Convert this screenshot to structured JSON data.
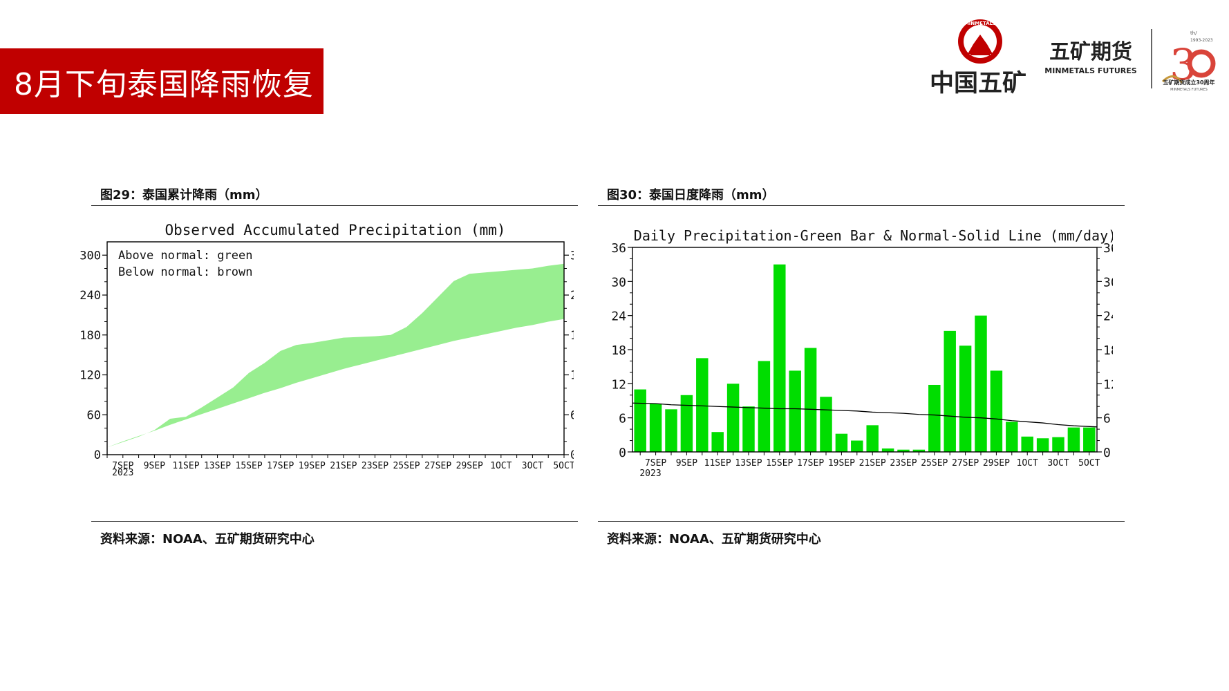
{
  "slide": {
    "title": "8月下旬泰国降雨恢复"
  },
  "logos": {
    "group_name": "中国五矿",
    "seal_text": "MINMETALS",
    "brand_cn": "五矿期货",
    "brand_en": "MINMETALS FUTURES",
    "anniv_small": "th/",
    "anniv_years": "1993-2023",
    "anniv_caption": "五矿期货成立30周年",
    "anniv_caption_en": "MINMETALS FUTURES"
  },
  "figures": [
    {
      "caption": "图29：泰国累计降雨（mm）",
      "source": "资料来源：NOAA、五矿期货研究中心"
    },
    {
      "caption": "图30：泰国日度降雨（mm）",
      "source": "资料来源：NOAA、五矿期货研究中心"
    }
  ],
  "chart_data": [
    {
      "type": "area",
      "title": "Observed Accumulated Precipitation (mm)",
      "legend": [
        "Above normal: green",
        "Below normal: brown"
      ],
      "legend_position": "top-left",
      "x_ticks": [
        "7SEP",
        "9SEP",
        "11SEP",
        "13SEP",
        "15SEP",
        "17SEP",
        "19SEP",
        "21SEP",
        "23SEP",
        "25SEP",
        "27SEP",
        "29SEP",
        "1OCT",
        "3OCT",
        "5OCT"
      ],
      "x_year": "2023",
      "y_ticks": [
        0,
        60,
        120,
        180,
        240,
        300
      ],
      "ylim": [
        0,
        320
      ],
      "fill_color": "#98ee90",
      "days": [
        "6SEP",
        "7SEP",
        "8SEP",
        "9SEP",
        "10SEP",
        "11SEP",
        "12SEP",
        "13SEP",
        "14SEP",
        "15SEP",
        "16SEP",
        "17SEP",
        "18SEP",
        "19SEP",
        "20SEP",
        "21SEP",
        "22SEP",
        "23SEP",
        "24SEP",
        "25SEP",
        "26SEP",
        "27SEP",
        "28SEP",
        "29SEP",
        "30SEP",
        "1OCT",
        "2OCT",
        "3OCT",
        "4OCT",
        "5OCT"
      ],
      "series": [
        {
          "name": "Observed",
          "values": [
            11,
            19,
            27,
            37,
            54,
            57,
            71,
            86,
            101,
            123,
            138,
            156,
            165,
            168,
            172,
            176,
            177,
            178,
            180,
            192,
            213,
            237,
            261,
            272,
            274,
            276,
            278,
            280,
            284,
            287
          ]
        },
        {
          "name": "Normal",
          "values": [
            11,
            20,
            28,
            36,
            45,
            53,
            61,
            69,
            77,
            85,
            93,
            100,
            108,
            115,
            122,
            129,
            135,
            141,
            147,
            153,
            159,
            165,
            171,
            176,
            181,
            186,
            191,
            195,
            200,
            204
          ]
        }
      ]
    },
    {
      "type": "bar",
      "title": "Daily Precipitation-Green Bar & Normal-Solid Line (mm/day)",
      "x_ticks": [
        "7SEP",
        "9SEP",
        "11SEP",
        "13SEP",
        "15SEP",
        "17SEP",
        "19SEP",
        "21SEP",
        "23SEP",
        "25SEP",
        "27SEP",
        "29SEP",
        "1OCT",
        "3OCT",
        "5OCT"
      ],
      "x_year": "2023",
      "y_ticks": [
        0,
        6,
        12,
        18,
        24,
        30,
        36
      ],
      "ylim": [
        0,
        36
      ],
      "bar_color": "#00dd00",
      "line_color": "#000000",
      "categories": [
        "6SEP",
        "7SEP",
        "8SEP",
        "9SEP",
        "10SEP",
        "11SEP",
        "12SEP",
        "13SEP",
        "14SEP",
        "15SEP",
        "16SEP",
        "17SEP",
        "18SEP",
        "19SEP",
        "20SEP",
        "21SEP",
        "22SEP",
        "23SEP",
        "24SEP",
        "25SEP",
        "26SEP",
        "27SEP",
        "28SEP",
        "29SEP",
        "30SEP",
        "1OCT",
        "2OCT",
        "3OCT",
        "4OCT",
        "5OCT"
      ],
      "series": [
        {
          "name": "Daily",
          "values": [
            11,
            8.5,
            7.5,
            10,
            16.5,
            3.5,
            12,
            8,
            16,
            33,
            14.3,
            18.3,
            9.7,
            3.2,
            2,
            4.7,
            0.6,
            0.4,
            0.4,
            11.8,
            21.3,
            18.7,
            24,
            14.3,
            5.3,
            2.7,
            2.4,
            2.6,
            4.3,
            4.3
          ]
        },
        {
          "name": "Normal",
          "values": [
            8.6,
            8.5,
            8.3,
            8.2,
            8.1,
            8.0,
            7.9,
            7.8,
            7.7,
            7.6,
            7.6,
            7.5,
            7.4,
            7.3,
            7.2,
            7.0,
            6.9,
            6.8,
            6.6,
            6.5,
            6.3,
            6.1,
            6.0,
            5.8,
            5.5,
            5.3,
            5.1,
            4.8,
            4.6,
            4.4
          ]
        }
      ]
    }
  ]
}
